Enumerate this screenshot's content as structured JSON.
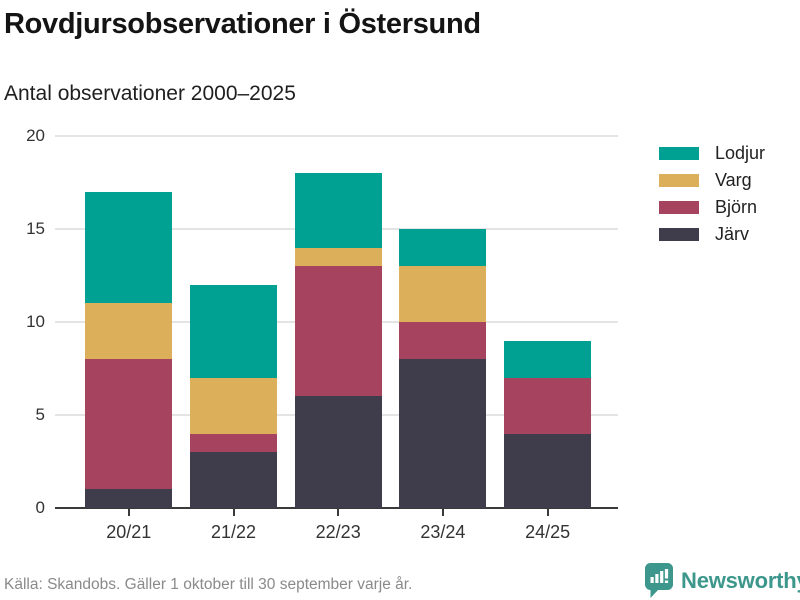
{
  "header": {
    "title": "Rovdjursobservationer i Östersund",
    "subtitle": "Antal observationer 2000–2025"
  },
  "chart_data": {
    "type": "bar",
    "stacked": true,
    "title": "Rovdjursobservationer i Östersund",
    "subtitle": "Antal observationer 2000–2025",
    "categories": [
      "20/21",
      "21/22",
      "22/23",
      "23/24",
      "24/25"
    ],
    "series": [
      {
        "name": "Lodjur",
        "color": "#00A193",
        "values": [
          6,
          5,
          4,
          2,
          2
        ]
      },
      {
        "name": "Varg",
        "color": "#DCAF5A",
        "values": [
          3,
          3,
          1,
          3,
          0
        ]
      },
      {
        "name": "Björn",
        "color": "#A64460",
        "values": [
          7,
          1,
          7,
          2,
          3
        ]
      },
      {
        "name": "Järv",
        "color": "#3F3D4C",
        "values": [
          1,
          3,
          6,
          8,
          4
        ]
      }
    ],
    "stack_order_top_to_bottom": [
      "Lodjur",
      "Varg",
      "Björn",
      "Järv"
    ],
    "totals": [
      17,
      12,
      18,
      15,
      9
    ],
    "xlabel": "",
    "ylabel": "",
    "yticks": [
      0,
      5,
      10,
      15,
      20
    ],
    "ylim": [
      0,
      20
    ],
    "grid": "horizontal",
    "legend_position": "right"
  },
  "footer": {
    "source": "Källa: Skandobs. Gäller 1 oktober till 30 september varje år."
  },
  "branding": {
    "name": "Newsworthy",
    "color": "#3D978C"
  },
  "colors": {
    "grid": "#E4E4E4",
    "axis": "#3A3A3A",
    "tick_text": "#333333",
    "muted_text": "#8A8A8A",
    "background": "#FFFFFF"
  }
}
